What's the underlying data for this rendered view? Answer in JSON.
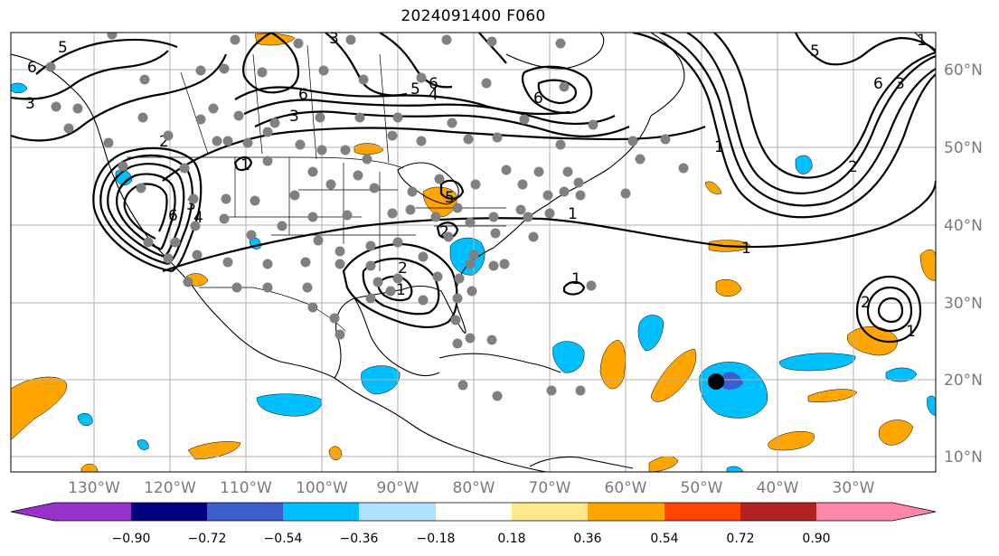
{
  "title": "2024091400 F060",
  "map": {
    "lon_ticks": [
      "130°W",
      "120°W",
      "110°W",
      "100°W",
      "90°W",
      "80°W",
      "70°W",
      "60°W",
      "50°W",
      "40°W",
      "30°W"
    ],
    "lat_ticks": [
      "10°N",
      "20°N",
      "30°N",
      "40°N",
      "50°N",
      "60°N"
    ],
    "grid": true,
    "contour_labels": [
      "5",
      "3",
      "6",
      "3",
      "6",
      "5",
      "4",
      "6",
      "5",
      "6",
      "3",
      "2",
      "1",
      "1",
      "3",
      "4",
      "6",
      "2",
      "1",
      "2",
      "5",
      "1",
      "1",
      "1",
      "2",
      "1",
      "2",
      "6",
      "3",
      "1"
    ],
    "station_marker_color": "#808080",
    "storm_marker_color": "#000000"
  },
  "colorbar": {
    "ticks": [
      "−0.90",
      "−0.72",
      "−0.54",
      "−0.36",
      "−0.18",
      "0.18",
      "0.36",
      "0.54",
      "0.72",
      "0.90"
    ],
    "colors": [
      "#9932cc",
      "#000080",
      "#3a5fcd",
      "#00bfff",
      "#b0e2ff",
      "#ffffff",
      "#ffe88c",
      "#ffa500",
      "#ff4500",
      "#b22222",
      "#ff88aa"
    ]
  }
}
